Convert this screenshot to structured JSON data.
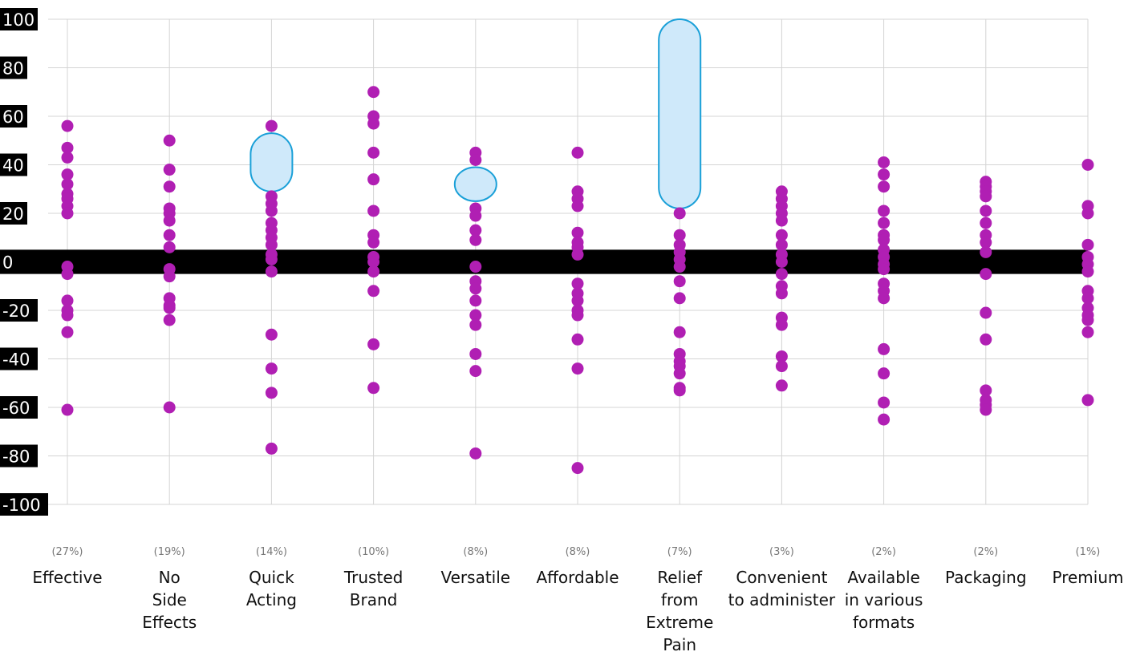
{
  "chart_data": {
    "type": "scatter",
    "title": "",
    "xlabel": "",
    "ylabel": "",
    "ylim": [
      -100,
      100
    ],
    "yticks": [
      100,
      80,
      60,
      40,
      20,
      0,
      -20,
      -40,
      -60,
      -80,
      -100
    ],
    "grid": true,
    "zero_band": [
      -5,
      5
    ],
    "colors": {
      "point": "#b01fb3",
      "band": "#000000",
      "highlight_fill": "#cfe9fa",
      "highlight_stroke": "#1aa0d8",
      "grid": "#d4d4d4"
    },
    "categories": [
      {
        "label": "Effective",
        "label_lines": [
          "Effective"
        ],
        "pct": "(27%)",
        "values": [
          56,
          47,
          43,
          36,
          32,
          28,
          26,
          23,
          20,
          -2,
          -5,
          -16,
          -20,
          -22,
          -29,
          -61
        ]
      },
      {
        "label": "No Side Effects",
        "label_lines": [
          "No",
          "Side",
          "Effects"
        ],
        "pct": "(19%)",
        "values": [
          50,
          38,
          31,
          22,
          20,
          17,
          11,
          6,
          -3,
          -6,
          -15,
          -18,
          -19,
          -24,
          -60
        ]
      },
      {
        "label": "Quick Acting",
        "label_lines": [
          "Quick",
          "Acting"
        ],
        "pct": "(14%)",
        "values": [
          56,
          27,
          24,
          21,
          16,
          13,
          10,
          7,
          3,
          1,
          -4,
          -30,
          -44,
          -54,
          -77
        ]
      },
      {
        "label": "Trusted Brand",
        "label_lines": [
          "Trusted",
          "Brand"
        ],
        "pct": "(10%)",
        "values": [
          70,
          60,
          57,
          45,
          34,
          21,
          11,
          8,
          2,
          0,
          -4,
          -12,
          -34,
          -52
        ]
      },
      {
        "label": "Versatile",
        "label_lines": [
          "Versatile"
        ],
        "pct": "(8%)",
        "values": [
          45,
          42,
          22,
          19,
          13,
          9,
          -2,
          -8,
          -11,
          -16,
          -22,
          -26,
          -38,
          -45,
          -79
        ]
      },
      {
        "label": "Affordable",
        "label_lines": [
          "Affordable"
        ],
        "pct": "(8%)",
        "values": [
          45,
          29,
          26,
          23,
          12,
          8,
          6,
          3,
          -9,
          -13,
          -16,
          -20,
          -22,
          -32,
          -44,
          -85
        ]
      },
      {
        "label": "Relief from Extreme Pain",
        "label_lines": [
          "Relief",
          "from",
          "Extreme",
          "Pain"
        ],
        "pct": "(7%)",
        "values": [
          20,
          11,
          7,
          4,
          1,
          -2,
          -8,
          -15,
          -29,
          -38,
          -41,
          -43,
          -46,
          -52,
          -53
        ]
      },
      {
        "label": "Convenient to administer",
        "label_lines": [
          "Convenient",
          "to administer"
        ],
        "pct": "(3%)",
        "values": [
          29,
          26,
          23,
          20,
          17,
          11,
          7,
          3,
          0,
          -5,
          -10,
          -13,
          -23,
          -26,
          -39,
          -43,
          -51
        ]
      },
      {
        "label": "Available in various formats",
        "label_lines": [
          "Available",
          "in various",
          "formats"
        ],
        "pct": "(2%)",
        "values": [
          41,
          36,
          31,
          21,
          16,
          11,
          9,
          5,
          2,
          -1,
          -3,
          -9,
          -12,
          -15,
          -36,
          -46,
          -58,
          -65
        ]
      },
      {
        "label": "Packaging",
        "label_lines": [
          "Packaging"
        ],
        "pct": "(2%)",
        "values": [
          33,
          31,
          29,
          27,
          21,
          16,
          11,
          8,
          4,
          -5,
          -21,
          -32,
          -53,
          -57,
          -59,
          -61
        ]
      },
      {
        "label": "Premium",
        "label_lines": [
          "Premium"
        ],
        "pct": "(1%)",
        "values": [
          40,
          23,
          20,
          7,
          2,
          -1,
          -4,
          -12,
          -15,
          -19,
          -22,
          -24,
          -29,
          -57
        ]
      }
    ],
    "highlights": [
      {
        "category": "Quick Acting",
        "y_range": [
          29,
          53
        ]
      },
      {
        "category": "Versatile",
        "y_range": [
          25,
          39
        ]
      },
      {
        "category": "Relief from Extreme Pain",
        "y_range": [
          22,
          100
        ]
      }
    ]
  }
}
